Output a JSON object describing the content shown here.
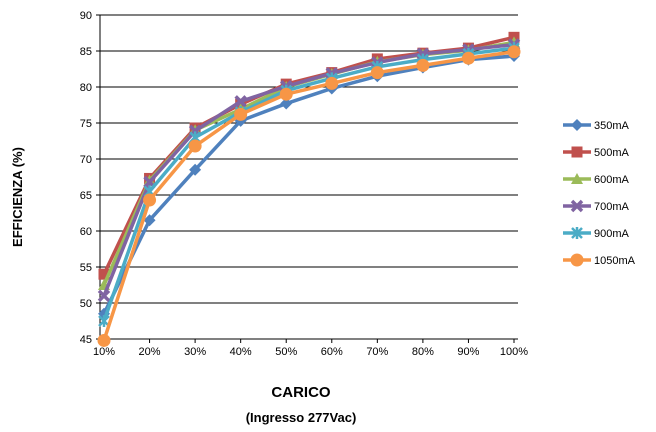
{
  "chart_data": {
    "type": "line",
    "title": "",
    "xlabel": "CARICO",
    "xlabel_sub": "(Ingresso 277Vac)",
    "ylabel": "EFFICIENZA (%)",
    "categories": [
      "10%",
      "20%",
      "30%",
      "40%",
      "50%",
      "60%",
      "70%",
      "80%",
      "90%",
      "100%"
    ],
    "ylim": [
      45,
      90
    ],
    "yticks": [
      45,
      50,
      55,
      60,
      65,
      70,
      75,
      80,
      85,
      90
    ],
    "grid": true,
    "legend_position": "right",
    "series": [
      {
        "name": "350mA",
        "color": "#4F81BD",
        "marker": "diamond",
        "values": [
          48.5,
          61.5,
          68.5,
          75.3,
          77.7,
          79.8,
          81.5,
          82.7,
          83.8,
          84.3
        ]
      },
      {
        "name": "500mA",
        "color": "#C0504D",
        "marker": "square",
        "values": [
          54.0,
          67.3,
          74.3,
          77.6,
          80.4,
          82.0,
          83.9,
          84.7,
          85.4,
          86.9
        ]
      },
      {
        "name": "600mA",
        "color": "#9BBB59",
        "marker": "triangle",
        "values": [
          52.5,
          67.0,
          74.0,
          76.9,
          80.0,
          81.8,
          83.5,
          84.5,
          85.1,
          86.2
        ]
      },
      {
        "name": "700mA",
        "color": "#8064A2",
        "marker": "x",
        "values": [
          51.0,
          66.8,
          73.9,
          78.0,
          80.1,
          81.9,
          83.4,
          84.6,
          85.2,
          85.9
        ]
      },
      {
        "name": "900mA",
        "color": "#4BACC6",
        "marker": "star",
        "values": [
          47.5,
          65.5,
          73.0,
          76.5,
          79.5,
          81.2,
          82.8,
          83.8,
          84.6,
          85.4
        ]
      },
      {
        "name": "1050mA",
        "color": "#F79646",
        "marker": "circle",
        "values": [
          44.8,
          64.3,
          71.8,
          76.2,
          79.0,
          80.5,
          82.0,
          83.0,
          84.0,
          84.9
        ]
      }
    ]
  }
}
